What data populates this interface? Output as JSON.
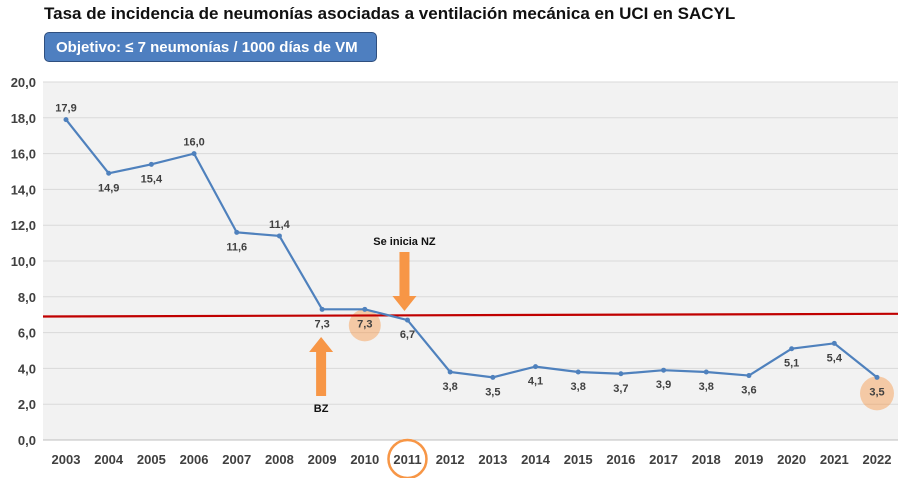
{
  "title": "Tasa de incidencia de neumonías asociadas a ventilación mecánica en UCI en SACYL",
  "objective": "Objetivo: ≤ 7 neumonías / 1000 días de VM",
  "chart_data": {
    "type": "line",
    "title": "Tasa de incidencia de neumonías asociadas a ventilación mecánica en UCI en SACYL",
    "categories": [
      "2003",
      "2004",
      "2005",
      "2006",
      "2007",
      "2008",
      "2009",
      "2010",
      "2011",
      "2012",
      "2013",
      "2014",
      "2015",
      "2016",
      "2017",
      "2018",
      "2019",
      "2020",
      "2021",
      "2022"
    ],
    "values": [
      17.9,
      14.9,
      15.4,
      16.0,
      11.6,
      11.4,
      7.3,
      7.3,
      6.7,
      3.8,
      3.5,
      4.1,
      3.8,
      3.7,
      3.9,
      3.8,
      3.6,
      5.1,
      5.4,
      3.5
    ],
    "value_labels": [
      "17,9",
      "14,9",
      "15,4",
      "16,0",
      "11,6",
      "11,4",
      "7,3",
      "7,3",
      "6,7",
      "3,8",
      "3,5",
      "4,1",
      "3,8",
      "3,7",
      "3,9",
      "3,8",
      "3,6",
      "5,1",
      "5,4",
      "3,5"
    ],
    "ylim": [
      0,
      20
    ],
    "yticks": [
      "0,0",
      "2,0",
      "4,0",
      "6,0",
      "8,0",
      "10,0",
      "12,0",
      "14,0",
      "16,0",
      "18,0",
      "20,0"
    ],
    "target_line": {
      "value": 7,
      "color": "#c00000"
    },
    "series_color": "#4f81bd",
    "annotations": [
      {
        "text": "BZ",
        "year": "2009",
        "direction": "up"
      },
      {
        "text": "Se inicia NZ",
        "year": "2011",
        "direction": "down"
      }
    ],
    "highlight_color": "#f79646"
  }
}
